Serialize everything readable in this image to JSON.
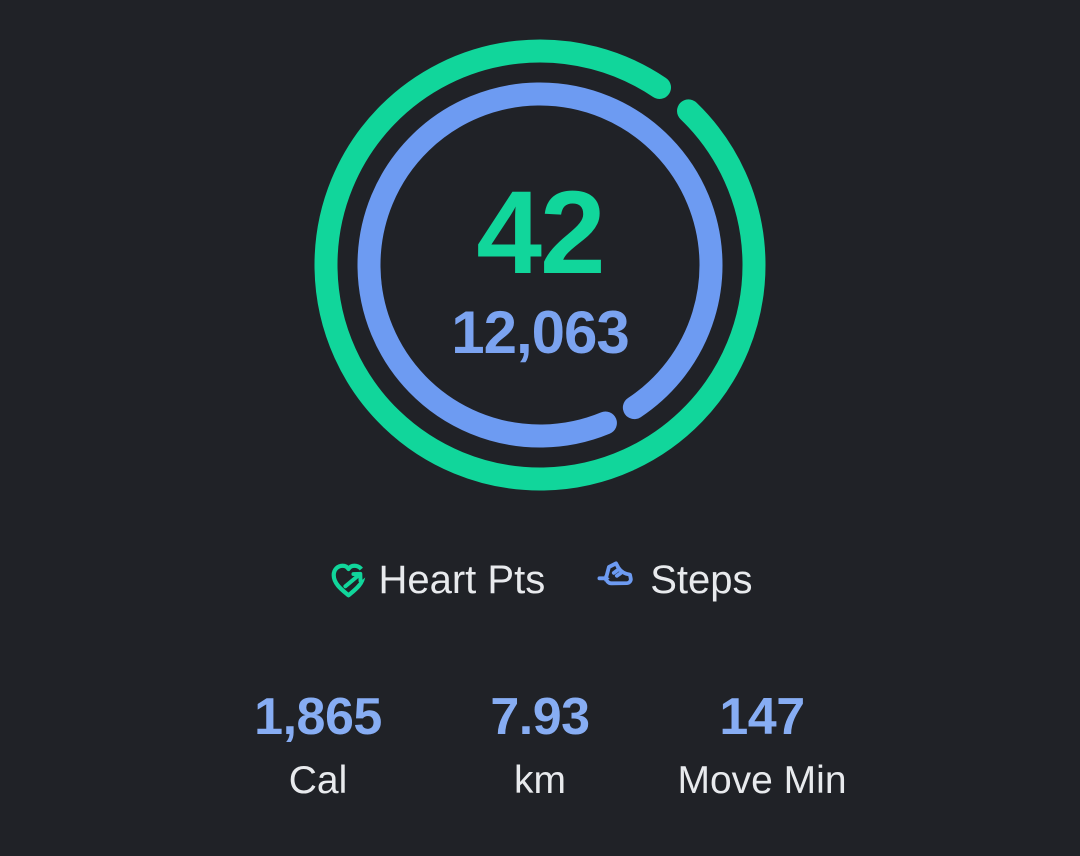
{
  "theme": {
    "background": "#202227",
    "green": "#11d69b",
    "blue": "#6d9bf2",
    "center_steps_color": "#7ba3f0",
    "stat_value_color": "#87adf3",
    "label_color": "#e8eaed"
  },
  "ring": {
    "heart_points_value": "42",
    "steps_value": "12,063",
    "heart_progress_end_deg": 39,
    "steps_progress_end_deg": 152
  },
  "legend": {
    "items": [
      {
        "icon": "heart-points-icon",
        "label": "Heart Pts"
      },
      {
        "icon": "steps-shoe-icon",
        "label": "Steps"
      }
    ]
  },
  "stats": [
    {
      "value": "1,865",
      "label": "Cal"
    },
    {
      "value": "7.93",
      "label": "km"
    },
    {
      "value": "147",
      "label": "Move Min"
    }
  ]
}
